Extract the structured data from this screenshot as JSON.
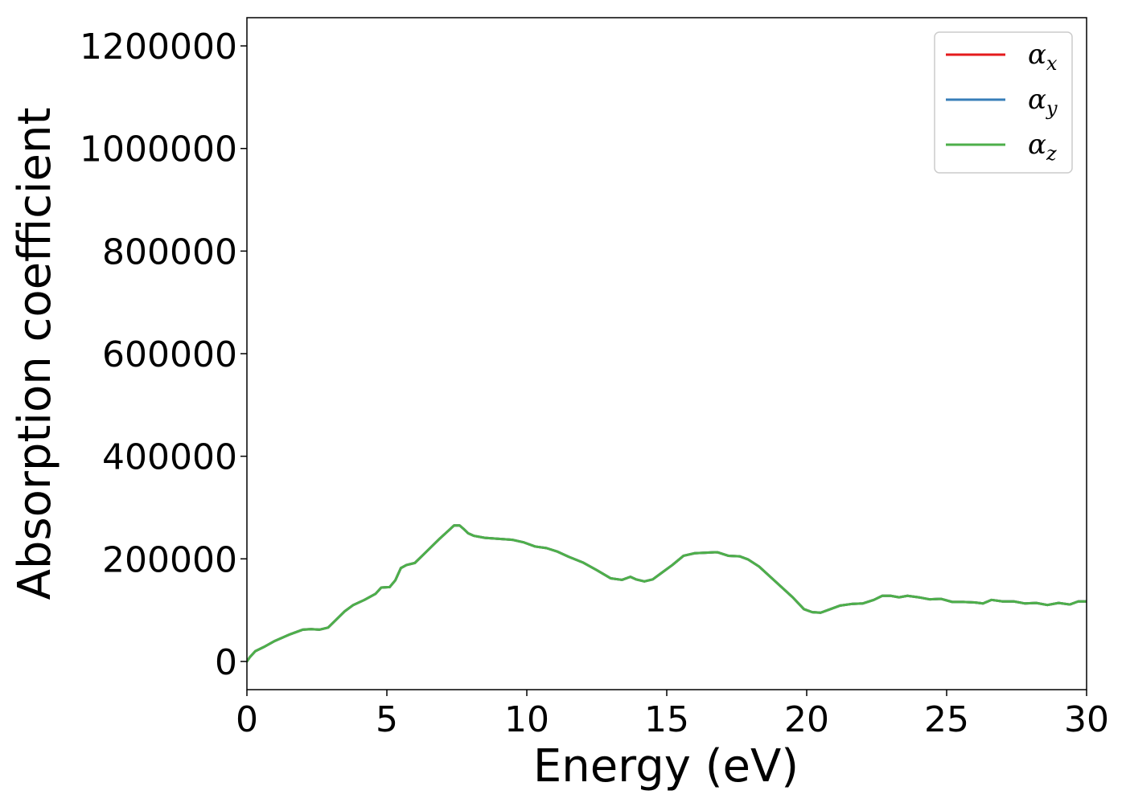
{
  "chart_data": {
    "type": "line",
    "xlabel": "Energy (eV)",
    "ylabel": "Absorption coefficient",
    "xlim": [
      0,
      30
    ],
    "ylim": [
      -55000,
      1255000
    ],
    "xticks": [
      0,
      5,
      10,
      15,
      20,
      25,
      30
    ],
    "yticks": [
      0,
      200000,
      400000,
      600000,
      800000,
      1000000,
      1200000
    ],
    "xtick_labels": [
      "0",
      "5",
      "10",
      "15",
      "20",
      "25",
      "30"
    ],
    "ytick_labels": [
      "0",
      "200000",
      "400000",
      "600000",
      "800000",
      "1000000",
      "1200000"
    ],
    "grid": false,
    "legend_position": "top-right",
    "legend_entries": [
      "α_x",
      "α_y",
      "α_z"
    ],
    "x": [
      0,
      0.1,
      0.3,
      0.6,
      1.0,
      1.5,
      2.0,
      2.3,
      2.6,
      2.9,
      3.2,
      3.5,
      3.8,
      4.2,
      4.6,
      4.8,
      5.1,
      5.3,
      5.5,
      5.7,
      6.0,
      6.3,
      6.6,
      6.9,
      7.2,
      7.4,
      7.6,
      7.75,
      7.9,
      8.1,
      8.5,
      9.0,
      9.5,
      9.9,
      10.3,
      10.7,
      11.1,
      11.5,
      12.0,
      12.5,
      13.0,
      13.4,
      13.7,
      13.9,
      14.2,
      14.5,
      14.8,
      15.2,
      15.6,
      16.0,
      16.4,
      16.8,
      17.2,
      17.6,
      17.9,
      18.3,
      18.7,
      19.1,
      19.5,
      19.9,
      20.2,
      20.5,
      20.8,
      21.2,
      21.6,
      22.0,
      22.4,
      22.7,
      23.0,
      23.3,
      23.6,
      24.0,
      24.4,
      24.8,
      25.2,
      25.6,
      26.0,
      26.3,
      26.6,
      27.0,
      27.4,
      27.8,
      28.2,
      28.6,
      29.0,
      29.4,
      29.7,
      30.0
    ],
    "series": [
      {
        "name": "α_x",
        "color": "#e41a1c",
        "values": [
          0,
          8000,
          20000,
          28000,
          40000,
          52000,
          62000,
          63000,
          62000,
          66000,
          82000,
          98000,
          110000,
          120000,
          132000,
          144000,
          145000,
          158000,
          182000,
          188000,
          192000,
          208000,
          224000,
          240000,
          255000,
          265000,
          265000,
          258000,
          250000,
          245000,
          241000,
          239000,
          237000,
          232000,
          224000,
          221000,
          214000,
          204000,
          193000,
          178000,
          162000,
          159000,
          165000,
          160000,
          156000,
          160000,
          172000,
          188000,
          206000,
          211000,
          212000,
          213000,
          206000,
          205000,
          199000,
          185000,
          165000,
          145000,
          125000,
          102000,
          96000,
          95000,
          101000,
          109000,
          112000,
          113000,
          120000,
          128000,
          128000,
          125000,
          128000,
          125000,
          121000,
          122000,
          116000,
          116000,
          115000,
          113000,
          120000,
          117000,
          117000,
          113000,
          114000,
          110000,
          114000,
          111000,
          117000,
          117000
        ]
      },
      {
        "name": "α_y",
        "color": "#377eb8",
        "values": [
          0,
          8000,
          20000,
          28000,
          40000,
          52000,
          62000,
          63000,
          62000,
          66000,
          82000,
          98000,
          110000,
          120000,
          132000,
          144000,
          145000,
          158000,
          182000,
          188000,
          192000,
          208000,
          224000,
          240000,
          255000,
          265000,
          265000,
          258000,
          250000,
          245000,
          241000,
          239000,
          237000,
          232000,
          224000,
          221000,
          214000,
          204000,
          193000,
          178000,
          162000,
          159000,
          165000,
          160000,
          156000,
          160000,
          172000,
          188000,
          206000,
          211000,
          212000,
          213000,
          206000,
          205000,
          199000,
          185000,
          165000,
          145000,
          125000,
          102000,
          96000,
          95000,
          101000,
          109000,
          112000,
          113000,
          120000,
          128000,
          128000,
          125000,
          128000,
          125000,
          121000,
          122000,
          116000,
          116000,
          115000,
          113000,
          120000,
          117000,
          117000,
          113000,
          114000,
          110000,
          114000,
          111000,
          117000,
          117000
        ]
      },
      {
        "name": "α_z",
        "color": "#4daf4a",
        "values": [
          0,
          8000,
          20000,
          28000,
          40000,
          52000,
          62000,
          63000,
          62000,
          66000,
          82000,
          98000,
          110000,
          120000,
          132000,
          144000,
          145000,
          158000,
          182000,
          188000,
          192000,
          208000,
          224000,
          240000,
          255000,
          265000,
          265000,
          258000,
          250000,
          245000,
          241000,
          239000,
          237000,
          232000,
          224000,
          221000,
          214000,
          204000,
          193000,
          178000,
          162000,
          159000,
          165000,
          160000,
          156000,
          160000,
          172000,
          188000,
          206000,
          211000,
          212000,
          213000,
          206000,
          205000,
          199000,
          185000,
          165000,
          145000,
          125000,
          102000,
          96000,
          95000,
          101000,
          109000,
          112000,
          113000,
          120000,
          128000,
          128000,
          125000,
          128000,
          125000,
          121000,
          122000,
          116000,
          116000,
          115000,
          113000,
          120000,
          117000,
          117000,
          113000,
          114000,
          110000,
          114000,
          111000,
          117000,
          117000
        ]
      }
    ],
    "legend": {
      "items": [
        {
          "symbol": "α",
          "subscript": "x",
          "color": "#e41a1c"
        },
        {
          "symbol": "α",
          "subscript": "y",
          "color": "#377eb8"
        },
        {
          "symbol": "α",
          "subscript": "z",
          "color": "#4daf4a"
        }
      ]
    }
  }
}
